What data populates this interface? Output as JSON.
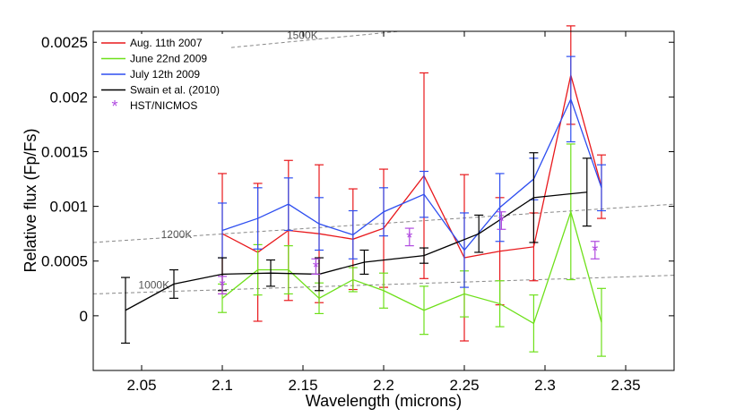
{
  "chart_data": {
    "type": "line",
    "title": "",
    "xlabel": "Wavelength (microns)",
    "ylabel": "Relative flux (Fp/Fs)",
    "xlim": [
      2.02,
      2.38
    ],
    "ylim": [
      -0.0005,
      0.0026
    ],
    "xticks": [
      2.05,
      2.1,
      2.15,
      2.2,
      2.25,
      2.3,
      2.35
    ],
    "xtick_labels": [
      "2.05",
      "2.1",
      "2.15",
      "2.2",
      "2.25",
      "2.3",
      "2.35"
    ],
    "yticks": [
      0,
      0.0005,
      0.001,
      0.0015,
      0.002,
      0.0025
    ],
    "ytick_labels": [
      "0",
      "0.0005",
      "0.001",
      "0.0015",
      "0.002",
      "0.0025"
    ],
    "grid": false,
    "legend_position": "top-left",
    "series": [
      {
        "name": "Aug. 11th 2007",
        "color": "#e8181c",
        "x": [
          2.1,
          2.122,
          2.141,
          2.16,
          2.181,
          2.2,
          2.225,
          2.25,
          2.272,
          2.293,
          2.316,
          2.335
        ],
        "y": [
          0.00075,
          0.00058,
          0.00078,
          0.00075,
          0.0007,
          0.0008,
          0.00128,
          0.00053,
          0.00059,
          0.00063,
          0.0022,
          0.00118
        ],
        "err": [
          0.00055,
          0.00063,
          0.00064,
          0.00063,
          0.00046,
          0.00054,
          0.00094,
          0.00076,
          0.00049,
          0.00031,
          0.00045,
          0.00029
        ]
      },
      {
        "name": "June 22nd 2009",
        "color": "#6ee01a",
        "x": [
          2.1,
          2.122,
          2.141,
          2.16,
          2.181,
          2.2,
          2.225,
          2.25,
          2.272,
          2.293,
          2.316,
          2.335
        ],
        "y": [
          0.00016,
          0.00042,
          0.00042,
          0.00016,
          0.00033,
          0.00023,
          5e-05,
          0.0002,
          0.00011,
          -7e-05,
          0.00095,
          -6e-05
        ],
        "err": [
          0.00013,
          0.00023,
          0.00022,
          0.00014,
          0.00011,
          0.00016,
          0.00022,
          0.00021,
          0.00021,
          0.00026,
          0.00062,
          0.00031
        ]
      },
      {
        "name": "July 12th 2009",
        "color": "#2e4ef0",
        "x": [
          2.1,
          2.122,
          2.141,
          2.16,
          2.181,
          2.2,
          2.225,
          2.25,
          2.272,
          2.293,
          2.316,
          2.335
        ],
        "y": [
          0.00078,
          0.00089,
          0.00102,
          0.00084,
          0.00074,
          0.00095,
          0.00111,
          0.0006,
          0.00099,
          0.00125,
          0.00198,
          0.00117
        ],
        "err": [
          0.00025,
          0.00028,
          0.00024,
          0.00024,
          0.00022,
          0.00022,
          0.00021,
          0.00034,
          0.00031,
          0.00019,
          0.00039,
          0.00021
        ]
      },
      {
        "name": "Swain et al. (2010)",
        "color": "#000000",
        "x": [
          2.04,
          2.07,
          2.1,
          2.13,
          2.16,
          2.188,
          2.225,
          2.259,
          2.293,
          2.326
        ],
        "y": [
          5e-05,
          0.00029,
          0.00038,
          0.00039,
          0.00038,
          0.00049,
          0.00055,
          0.00075,
          0.00108,
          0.00113
        ],
        "err": [
          0.0003,
          0.00013,
          0.00015,
          0.00012,
          0.00015,
          0.00011,
          7e-05,
          0.00017,
          0.00041,
          0.00031
        ]
      },
      {
        "name": "HST/NICMOS",
        "color": "#b04ae0",
        "marker": "*",
        "x": [
          2.1,
          2.158,
          2.216,
          2.273,
          2.331
        ],
        "y": [
          0.00028,
          0.00045,
          0.00072,
          0.00087,
          0.0006
        ],
        "err": [
          8e-05,
          7e-05,
          8e-05,
          8e-05,
          8e-05
        ]
      }
    ],
    "reference_lines": [
      {
        "label": "1000K",
        "color": "#888888",
        "x": [
          2.02,
          2.38
        ],
        "y": [
          0.0002,
          0.00037
        ]
      },
      {
        "label": "1200K",
        "color": "#888888",
        "x": [
          2.02,
          2.38
        ],
        "y": [
          0.00067,
          0.00102
        ]
      },
      {
        "label": "1500K",
        "color": "#888888",
        "x": [
          2.09,
          2.245
        ],
        "y": [
          0.00243,
          0.00265
        ]
      }
    ]
  }
}
